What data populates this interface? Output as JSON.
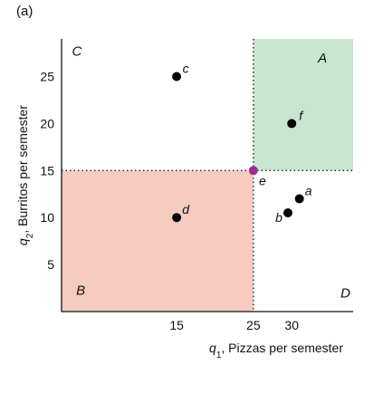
{
  "panel_label": "(a)",
  "chart_data": {
    "type": "scatter",
    "xlabel": {
      "main": "q",
      "sub": "1",
      "rest": ", Pizzas per semester"
    },
    "ylabel": {
      "main": "q",
      "sub": "2",
      "rest": ", Burritos per semester"
    },
    "xlim": [
      0,
      38
    ],
    "ylim": [
      0,
      29
    ],
    "x_ticks": [
      15,
      25,
      30
    ],
    "y_ticks": [
      5,
      10,
      15,
      20,
      25
    ],
    "grid": false,
    "reference_point": {
      "x": 25,
      "y": 15,
      "label": "e",
      "color": "#9b2d8f"
    },
    "regions": [
      {
        "label": "A",
        "x": [
          25,
          38
        ],
        "y": [
          15,
          29
        ],
        "fill": "#c8e6cf"
      },
      {
        "label": "B",
        "x": [
          0,
          25
        ],
        "y": [
          0,
          15
        ],
        "fill": "#f6cbc0"
      },
      {
        "label": "C",
        "x": [
          0,
          25
        ],
        "y": [
          15,
          29
        ],
        "fill": "none"
      },
      {
        "label": "D",
        "x": [
          25,
          38
        ],
        "y": [
          0,
          15
        ],
        "fill": "none"
      }
    ],
    "points": [
      {
        "label": "a",
        "x": 31,
        "y": 12
      },
      {
        "label": "b",
        "x": 29.5,
        "y": 10.5
      },
      {
        "label": "c",
        "x": 15,
        "y": 25
      },
      {
        "label": "d",
        "x": 15,
        "y": 10
      },
      {
        "label": "f",
        "x": 30,
        "y": 20
      }
    ]
  }
}
